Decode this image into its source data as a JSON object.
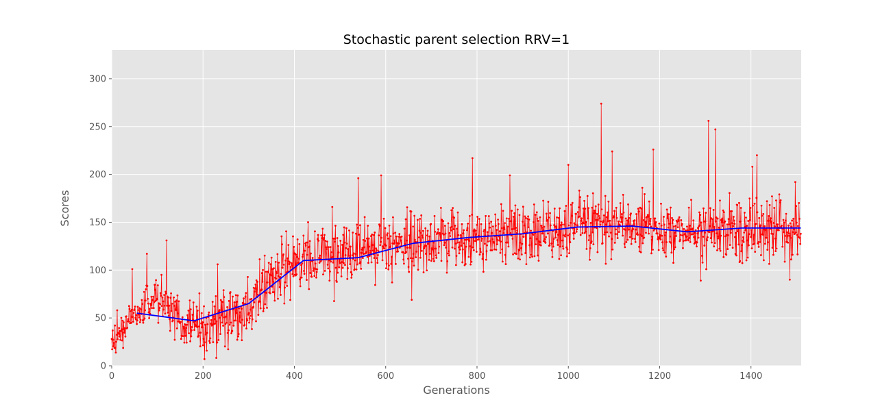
{
  "chart_data": {
    "type": "line",
    "title": "Stochastic parent selection  RRV=1",
    "xlabel": "Generations",
    "ylabel": "Scores",
    "xlim": [
      0,
      1510
    ],
    "ylim": [
      0,
      330
    ],
    "xticks": [
      0,
      200,
      400,
      600,
      800,
      1000,
      1200,
      1400
    ],
    "yticks": [
      0,
      50,
      100,
      150,
      200,
      250,
      300
    ],
    "grid": true,
    "background": "#e5e5e5",
    "series": [
      {
        "style": "raw",
        "color": "#ff0000",
        "marker": "dot",
        "n_points": 1510,
        "x_step": 1,
        "anchors": [
          [
            0,
            20
          ],
          [
            50,
            55
          ],
          [
            100,
            70
          ],
          [
            150,
            45
          ],
          [
            200,
            35
          ],
          [
            250,
            50
          ],
          [
            300,
            60
          ],
          [
            350,
            90
          ],
          [
            420,
            110
          ],
          [
            540,
            115
          ],
          [
            600,
            125
          ],
          [
            700,
            130
          ],
          [
            900,
            138
          ],
          [
            1000,
            143
          ],
          [
            1150,
            146
          ],
          [
            1250,
            140
          ],
          [
            1400,
            143
          ],
          [
            1509,
            143
          ]
        ],
        "spread": [
          [
            0,
            12
          ],
          [
            300,
            25
          ],
          [
            400,
            22
          ],
          [
            1000,
            22
          ],
          [
            1509,
            22
          ]
        ],
        "peaks": [
          [
            12,
            58
          ],
          [
            45,
            101
          ],
          [
            77,
            117
          ],
          [
            120,
            131
          ],
          [
            232,
            106
          ],
          [
            300,
            55
          ],
          [
            430,
            150
          ],
          [
            483,
            166
          ],
          [
            540,
            196
          ],
          [
            590,
            199
          ],
          [
            657,
            69
          ],
          [
            790,
            217
          ],
          [
            872,
            199
          ],
          [
            1000,
            210
          ],
          [
            1072,
            274
          ],
          [
            1096,
            224
          ],
          [
            1186,
            226
          ],
          [
            1290,
            89
          ],
          [
            1307,
            256
          ],
          [
            1322,
            247
          ],
          [
            1403,
            208
          ],
          [
            1413,
            220
          ],
          [
            1485,
            90
          ],
          [
            1497,
            192
          ]
        ]
      },
      {
        "style": "trend",
        "color": "#0000ff",
        "x": [
          55,
          180,
          300,
          420,
          540,
          660,
          780,
          900,
          1020,
          1140,
          1260,
          1380,
          1509
        ],
        "y": [
          55,
          47,
          65,
          110,
          113,
          128,
          134,
          138,
          145,
          146,
          140,
          144,
          144
        ]
      }
    ]
  }
}
